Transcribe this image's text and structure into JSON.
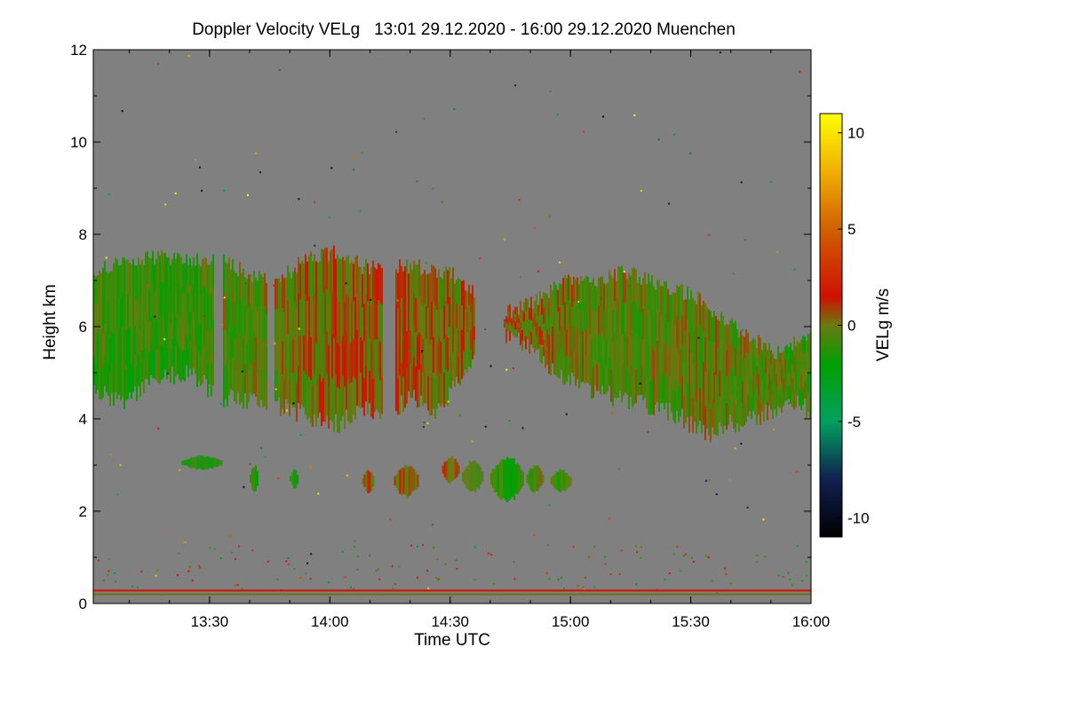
{
  "chart_data": {
    "type": "heatmap",
    "title": "Doppler Velocity VELg   13:01 29.12.2020 - 16:00 29.12.2020 Muenchen",
    "xlabel": "Time UTC",
    "ylabel": "Height km",
    "colorbar_label": "VELg m/s",
    "x_range_minutes_utc": [
      781,
      960
    ],
    "y_range_km": [
      0,
      12
    ],
    "color_range": [
      -11,
      11
    ],
    "x_ticks": [
      {
        "minute": 810,
        "label": "13:30"
      },
      {
        "minute": 840,
        "label": "14:00"
      },
      {
        "minute": 870,
        "label": "14:30"
      },
      {
        "minute": 900,
        "label": "15:00"
      },
      {
        "minute": 930,
        "label": "15:30"
      },
      {
        "minute": 960,
        "label": "16:00"
      }
    ],
    "y_ticks": [
      {
        "value": 0,
        "label": "0"
      },
      {
        "value": 2,
        "label": "2"
      },
      {
        "value": 4,
        "label": "4"
      },
      {
        "value": 6,
        "label": "6"
      },
      {
        "value": 8,
        "label": "8"
      },
      {
        "value": 10,
        "label": "10"
      },
      {
        "value": 12,
        "label": "12"
      }
    ],
    "colorbar_ticks": [
      {
        "value": 10,
        "label": "10"
      },
      {
        "value": 5,
        "label": "5"
      },
      {
        "value": 0,
        "label": "0"
      },
      {
        "value": -5,
        "label": "-5"
      },
      {
        "value": -10,
        "label": "-10"
      }
    ],
    "colormap_stops": [
      {
        "value": -11,
        "color": "#000000"
      },
      {
        "value": -8,
        "color": "#102050"
      },
      {
        "value": -5,
        "color": "#00a060"
      },
      {
        "value": -2,
        "color": "#00a000"
      },
      {
        "value": 0,
        "color": "#6a7a10"
      },
      {
        "value": 1.5,
        "color": "#d01000"
      },
      {
        "value": 5,
        "color": "#d06000"
      },
      {
        "value": 8,
        "color": "#f0b000"
      },
      {
        "value": 11,
        "color": "#ffff00"
      }
    ],
    "background_color": "#808080",
    "upper_cloud_layer": {
      "top_km": [
        [
          781,
          7.2
        ],
        [
          789,
          7.4
        ],
        [
          797,
          7.5
        ],
        [
          805,
          7.4
        ],
        [
          812,
          7.5
        ],
        [
          818,
          7.2
        ],
        [
          826,
          6.9
        ],
        [
          834,
          7.5
        ],
        [
          842,
          7.6
        ],
        [
          848,
          7.3
        ],
        [
          856,
          7.3
        ],
        [
          864,
          7.3
        ],
        [
          871,
          7.1
        ],
        [
          878,
          6.5
        ],
        [
          884,
          6.3
        ],
        [
          890,
          6.5
        ],
        [
          898,
          7.0
        ],
        [
          906,
          7.0
        ],
        [
          914,
          7.2
        ],
        [
          922,
          6.9
        ],
        [
          930,
          6.7
        ],
        [
          938,
          6.2
        ],
        [
          944,
          5.8
        ],
        [
          952,
          5.4
        ],
        [
          960,
          5.9
        ]
      ],
      "base_km": [
        [
          781,
          4.6
        ],
        [
          789,
          4.4
        ],
        [
          797,
          4.9
        ],
        [
          805,
          5.0
        ],
        [
          812,
          4.5
        ],
        [
          818,
          4.4
        ],
        [
          826,
          4.3
        ],
        [
          834,
          4.1
        ],
        [
          842,
          3.9
        ],
        [
          848,
          4.2
        ],
        [
          854,
          4.0
        ],
        [
          860,
          4.5
        ],
        [
          866,
          4.2
        ],
        [
          872,
          4.8
        ],
        [
          878,
          5.7
        ],
        [
          884,
          5.8
        ],
        [
          890,
          5.6
        ],
        [
          896,
          5.0
        ],
        [
          903,
          4.7
        ],
        [
          910,
          4.5
        ],
        [
          918,
          4.3
        ],
        [
          926,
          4.1
        ],
        [
          934,
          3.7
        ],
        [
          940,
          3.9
        ],
        [
          946,
          4.0
        ],
        [
          954,
          4.4
        ],
        [
          960,
          4.2
        ]
      ],
      "mean_velocity_ms": [
        [
          781,
          -1.0
        ],
        [
          800,
          -1.3
        ],
        [
          820,
          -0.5
        ],
        [
          840,
          0.3
        ],
        [
          856,
          0.5
        ],
        [
          868,
          0.1
        ],
        [
          880,
          0.6
        ],
        [
          900,
          -0.2
        ],
        [
          920,
          -0.6
        ],
        [
          940,
          -0.2
        ],
        [
          960,
          -0.8
        ]
      ]
    },
    "gaps_minutes": [
      [
        811,
        813
      ],
      [
        824,
        826
      ],
      [
        853,
        856
      ],
      [
        876,
        883
      ]
    ],
    "lower_cloud_patches": [
      {
        "x_min": [
          803,
          813
        ],
        "z_km": [
          2.9,
          3.2
        ],
        "velocity_ms": -1.5
      },
      {
        "x_min": [
          820,
          822
        ],
        "z_km": [
          2.4,
          3.0
        ],
        "velocity_ms": -1.6
      },
      {
        "x_min": [
          830,
          832
        ],
        "z_km": [
          2.5,
          2.9
        ],
        "velocity_ms": -1.2
      },
      {
        "x_min": [
          848,
          851
        ],
        "z_km": [
          2.4,
          2.9
        ],
        "velocity_ms": 0.4
      },
      {
        "x_min": [
          856,
          862
        ],
        "z_km": [
          2.3,
          3.0
        ],
        "velocity_ms": 0.6
      },
      {
        "x_min": [
          868,
          872
        ],
        "z_km": [
          2.6,
          3.2
        ],
        "velocity_ms": 0.4
      },
      {
        "x_min": [
          873,
          878
        ],
        "z_km": [
          2.4,
          3.1
        ],
        "velocity_ms": -0.8
      },
      {
        "x_min": [
          880,
          888
        ],
        "z_km": [
          2.2,
          3.2
        ],
        "velocity_ms": -1.2
      },
      {
        "x_min": [
          889,
          893
        ],
        "z_km": [
          2.4,
          3.0
        ],
        "velocity_ms": -0.6
      },
      {
        "x_min": [
          895,
          900
        ],
        "z_km": [
          2.4,
          2.9
        ],
        "velocity_ms": -1.0
      }
    ],
    "surface_band_km": [
      0.2,
      0.3
    ]
  }
}
